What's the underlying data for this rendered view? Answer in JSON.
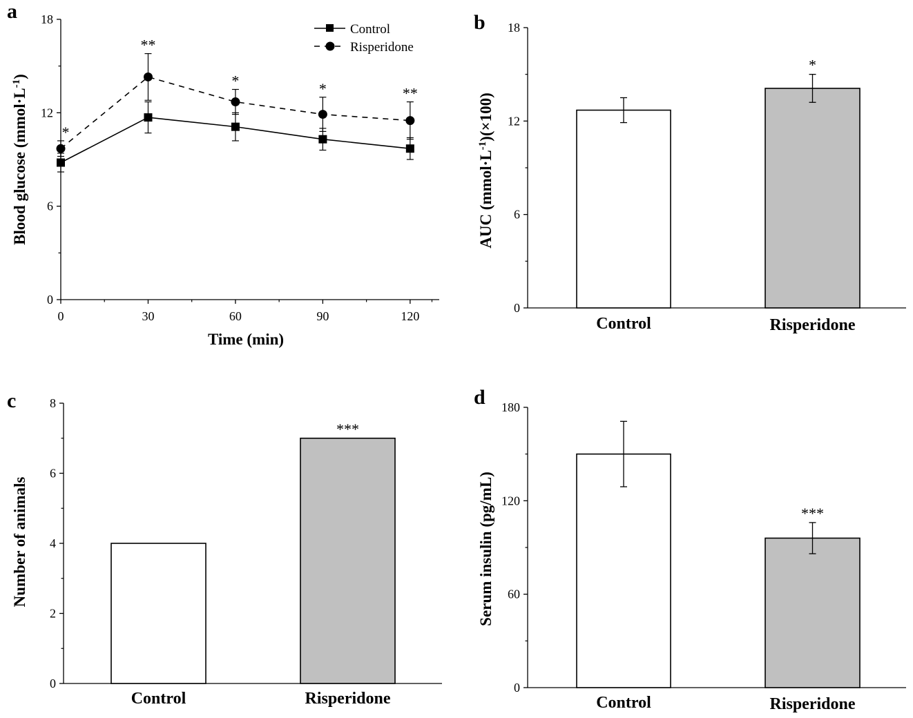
{
  "chart_data": [
    {
      "panel": "a",
      "type": "line",
      "xlabel": "Time (min)",
      "ylabel_main": "Blood glucose (mmol·L",
      "ylabel_sup": "-1",
      "ylabel_tail": ")",
      "xlim": [
        0,
        130
      ],
      "ylim": [
        0,
        18
      ],
      "x_ticks": [
        0,
        30,
        60,
        90,
        120
      ],
      "y_ticks": [
        0,
        6,
        12,
        18
      ],
      "x": [
        0,
        30,
        60,
        90,
        120
      ],
      "series": [
        {
          "name": "Control",
          "marker": "square",
          "dash": false,
          "values": [
            8.8,
            11.7,
            11.1,
            10.3,
            9.7
          ],
          "errors": [
            0.6,
            1.0,
            0.9,
            0.7,
            0.7
          ]
        },
        {
          "name": "Risperidone",
          "marker": "circle",
          "dash": true,
          "values": [
            9.7,
            14.3,
            12.7,
            11.9,
            11.5
          ],
          "errors": [
            0.5,
            1.5,
            0.8,
            1.1,
            1.2
          ]
        }
      ],
      "annotations": [
        {
          "x": 0,
          "text": "*"
        },
        {
          "x": 30,
          "text": "**"
        },
        {
          "x": 60,
          "text": "*"
        },
        {
          "x": 90,
          "text": "*"
        },
        {
          "x": 120,
          "text": "**"
        }
      ],
      "legend_position": "top-right"
    },
    {
      "panel": "b",
      "type": "bar",
      "ylabel_main": "AUC (mmol·L",
      "ylabel_sup": "-1",
      "ylabel_tail": ")(×100)",
      "ylim": [
        0,
        18
      ],
      "y_ticks": [
        0,
        6,
        12,
        18
      ],
      "categories": [
        "Control",
        "Risperidone"
      ],
      "values": [
        12.7,
        14.1
      ],
      "errors": [
        0.8,
        0.9
      ],
      "colors": [
        "#ffffff",
        "#c0c0c0"
      ],
      "annotations": [
        "",
        "*"
      ]
    },
    {
      "panel": "c",
      "type": "bar",
      "ylabel_main": "Number of animals",
      "ylabel_sup": "",
      "ylabel_tail": "",
      "ylim": [
        0,
        8
      ],
      "y_ticks": [
        0,
        2,
        4,
        6,
        8
      ],
      "categories": [
        "Control",
        "Risperidone"
      ],
      "values": [
        4,
        7
      ],
      "errors": [
        0,
        0
      ],
      "colors": [
        "#ffffff",
        "#c0c0c0"
      ],
      "annotations": [
        "",
        "***"
      ]
    },
    {
      "panel": "d",
      "type": "bar",
      "ylabel_main": "Serum insulin (pg/mL)",
      "ylabel_sup": "",
      "ylabel_tail": "",
      "ylim": [
        0,
        180
      ],
      "y_ticks": [
        0,
        60,
        120,
        180
      ],
      "categories": [
        "Control",
        "Risperidone"
      ],
      "values": [
        150,
        96
      ],
      "errors": [
        21,
        10
      ],
      "colors": [
        "#ffffff",
        "#c0c0c0"
      ],
      "annotations": [
        "",
        "***"
      ]
    }
  ]
}
